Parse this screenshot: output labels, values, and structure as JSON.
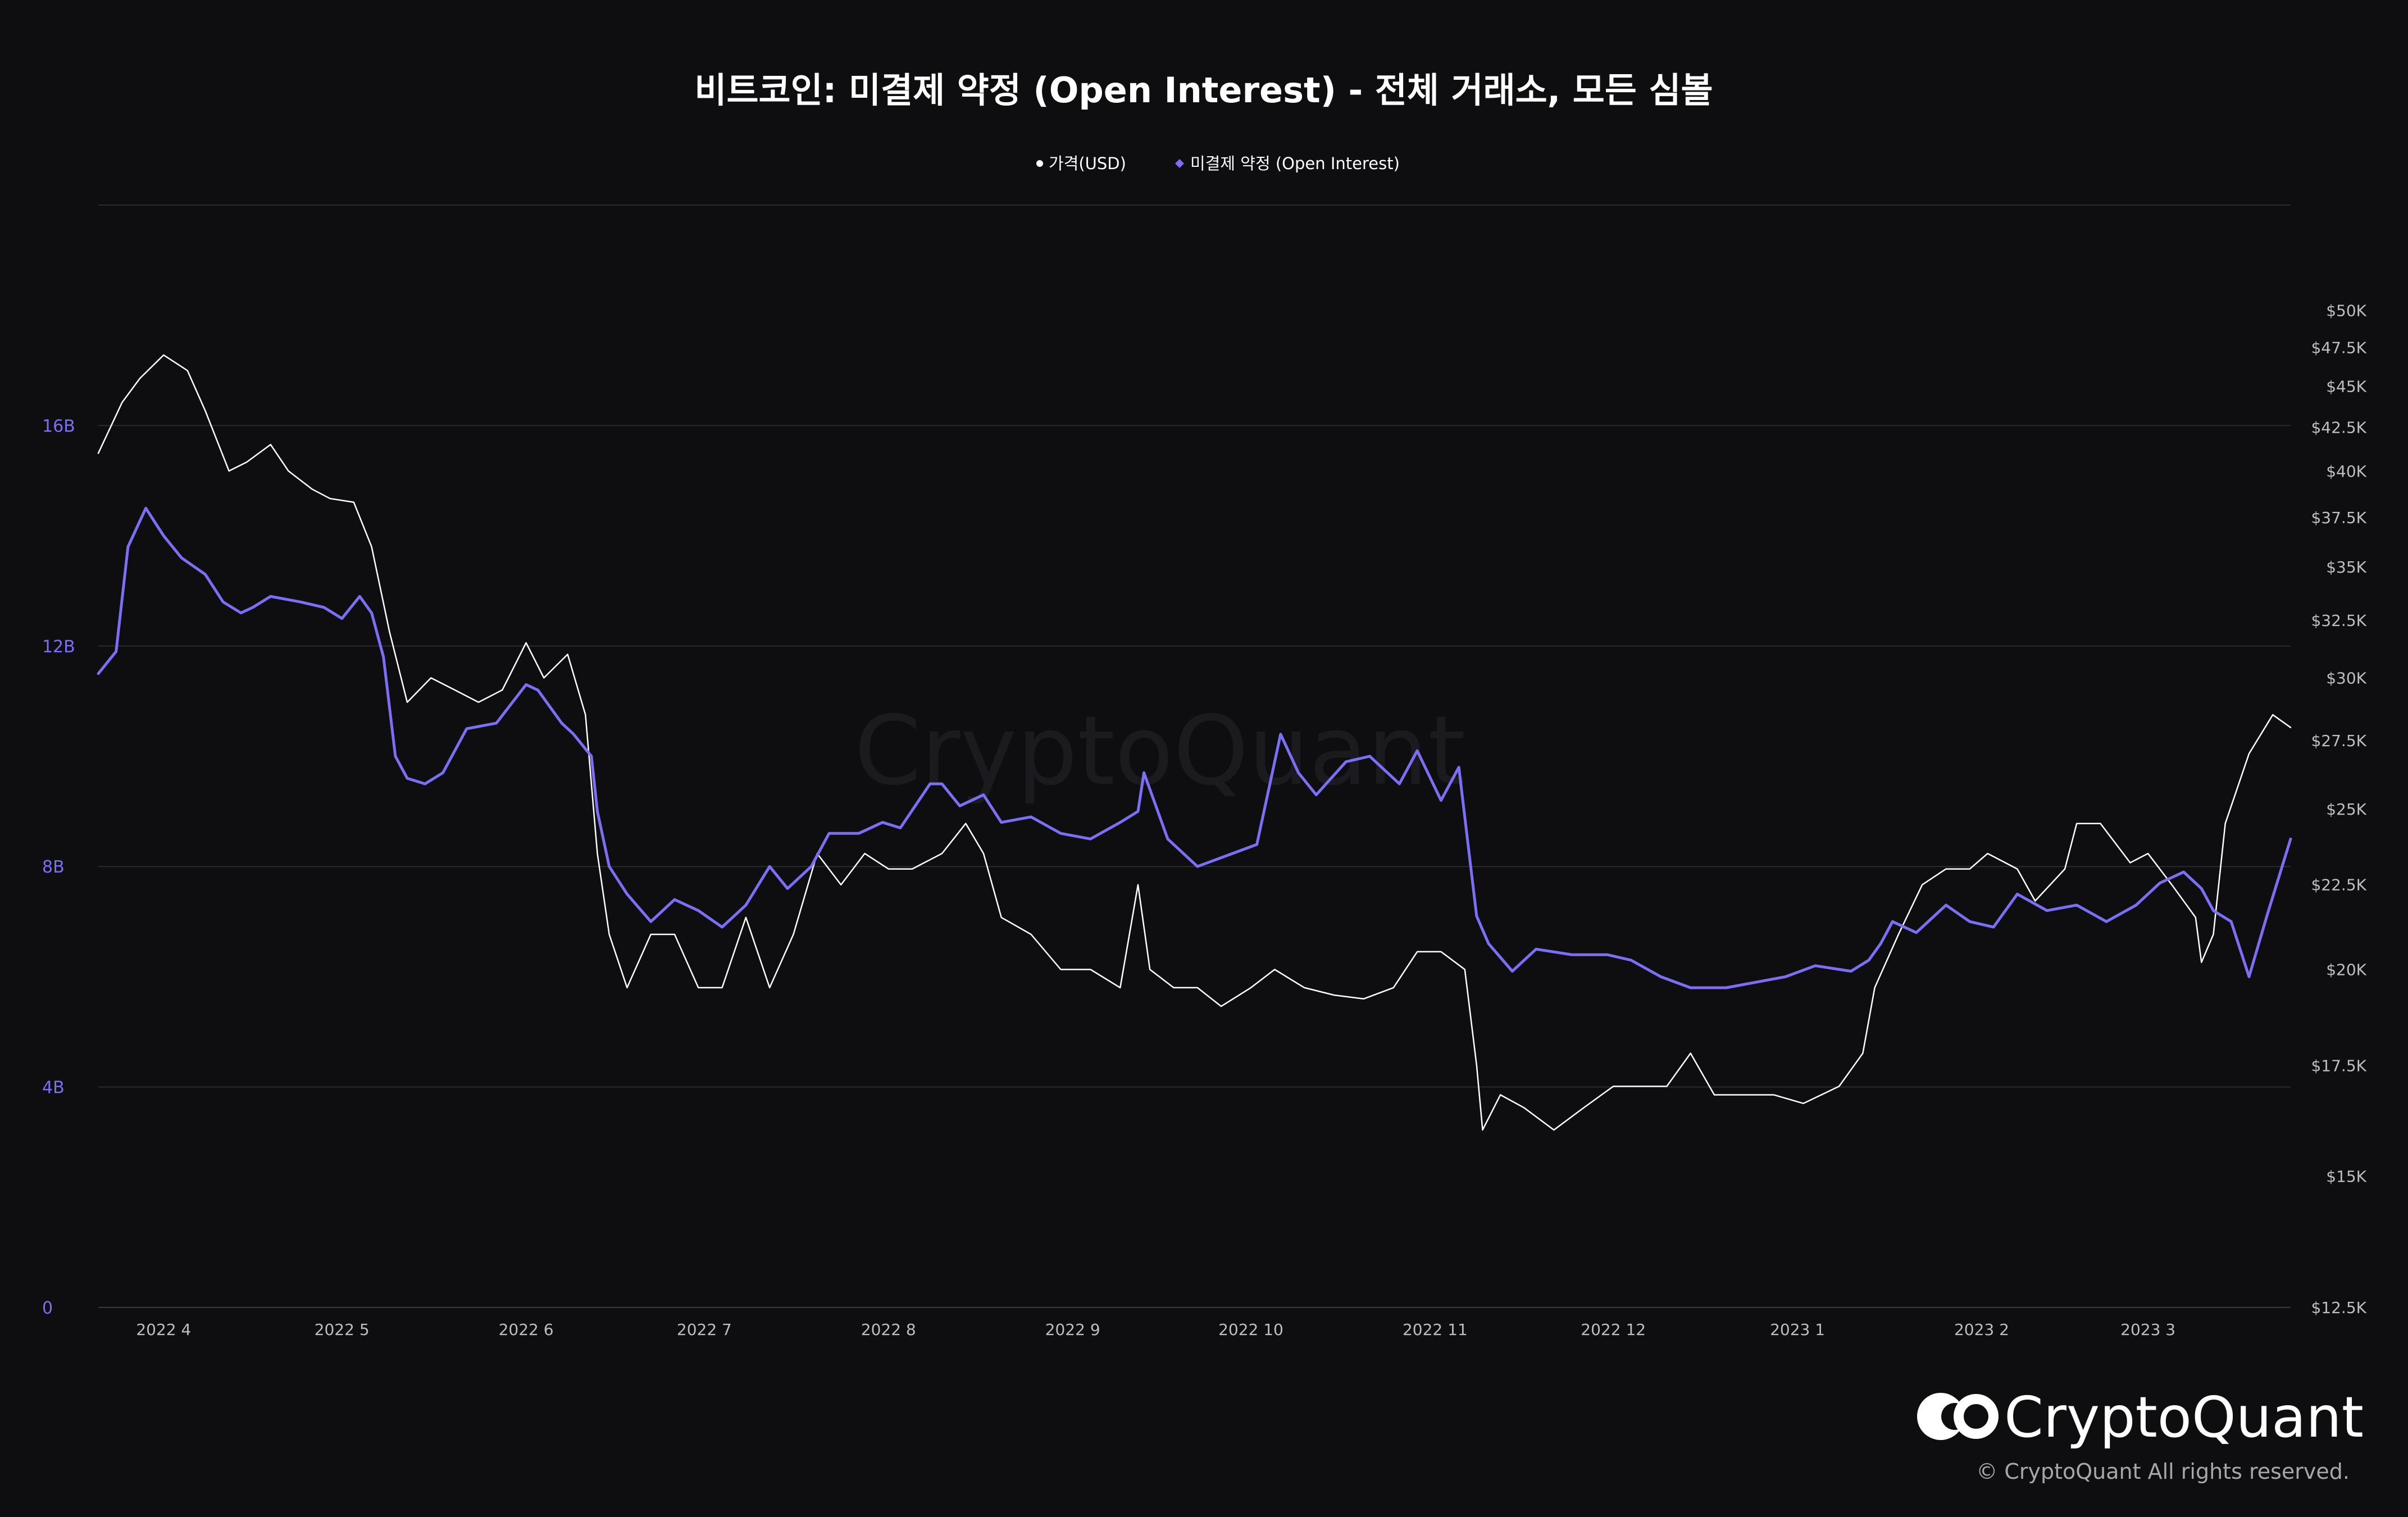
{
  "chart_data": {
    "type": "line",
    "title": "비트코인: 미결제 약정 (Open Interest) - 전체 거래소, 모든 심볼",
    "legend": {
      "placement": "top-center",
      "entries": [
        {
          "label": "가격(USD)",
          "marker": "circle",
          "color": "#ffffff"
        },
        {
          "label": "미결제 약정 (Open Interest)",
          "marker": "diamond",
          "color": "#7b6ff5"
        }
      ]
    },
    "x_ticks": [
      "2022 4",
      "2022 5",
      "2022 6",
      "2022 7",
      "2022 8",
      "2022 9",
      "2022 10",
      "2022 11",
      "2022 12",
      "2023 1",
      "2023 2",
      "2023 3"
    ],
    "x_range": [
      "2022-03-21",
      "2023-03-25"
    ],
    "left_axis": {
      "ticks": [
        "0",
        "4B",
        "8B",
        "12B",
        "16B"
      ],
      "ylim": [
        0,
        20
      ]
    },
    "right_axis": {
      "scale": "log",
      "ticks": [
        "$12.5K",
        "$15K",
        "$17.5K",
        "$20K",
        "$22.5K",
        "$25K",
        "$27.5K",
        "$30K",
        "$32.5K",
        "$35K",
        "$37.5K",
        "$40K",
        "$42.5K",
        "$45K",
        "$47.5K",
        "$50K"
      ],
      "ylim": [
        12.5,
        57.9
      ]
    },
    "grid": "horizontal",
    "series": [
      {
        "name": "가격(USD)",
        "axis": "right",
        "color": "#ffffff",
        "x": [
          "2022-03-21",
          "2022-03-25",
          "2022-03-28",
          "2022-04-01",
          "2022-04-05",
          "2022-04-08",
          "2022-04-12",
          "2022-04-15",
          "2022-04-19",
          "2022-04-22",
          "2022-04-26",
          "2022-04-29",
          "2022-05-03",
          "2022-05-06",
          "2022-05-09",
          "2022-05-12",
          "2022-05-16",
          "2022-05-20",
          "2022-05-24",
          "2022-05-28",
          "2022-06-01",
          "2022-06-04",
          "2022-06-08",
          "2022-06-11",
          "2022-06-13",
          "2022-06-15",
          "2022-06-18",
          "2022-06-22",
          "2022-06-26",
          "2022-06-30",
          "2022-07-04",
          "2022-07-08",
          "2022-07-12",
          "2022-07-16",
          "2022-07-20",
          "2022-07-24",
          "2022-07-28",
          "2022-08-01",
          "2022-08-05",
          "2022-08-10",
          "2022-08-14",
          "2022-08-17",
          "2022-08-20",
          "2022-08-25",
          "2022-08-30",
          "2022-09-04",
          "2022-09-09",
          "2022-09-12",
          "2022-09-14",
          "2022-09-18",
          "2022-09-22",
          "2022-09-26",
          "2022-10-01",
          "2022-10-05",
          "2022-10-10",
          "2022-10-15",
          "2022-10-20",
          "2022-10-25",
          "2022-10-29",
          "2022-11-02",
          "2022-11-06",
          "2022-11-08",
          "2022-11-09",
          "2022-11-12",
          "2022-11-16",
          "2022-11-21",
          "2022-11-26",
          "2022-12-01",
          "2022-12-05",
          "2022-12-10",
          "2022-12-14",
          "2022-12-18",
          "2022-12-23",
          "2022-12-28",
          "2023-01-02",
          "2023-01-08",
          "2023-01-12",
          "2023-01-14",
          "2023-01-18",
          "2023-01-22",
          "2023-01-26",
          "2023-01-30",
          "2023-02-02",
          "2023-02-07",
          "2023-02-10",
          "2023-02-15",
          "2023-02-17",
          "2023-02-21",
          "2023-02-26",
          "2023-03-01",
          "2023-03-05",
          "2023-03-09",
          "2023-03-10",
          "2023-03-12",
          "2023-03-14",
          "2023-03-18",
          "2023-03-22",
          "2023-03-25"
        ],
        "values": [
          41.0,
          44.0,
          45.5,
          47.0,
          46.0,
          43.5,
          40.0,
          40.5,
          41.5,
          40.0,
          39.0,
          38.5,
          38.3,
          36.0,
          32.0,
          29.0,
          30.0,
          29.5,
          29.0,
          29.5,
          31.5,
          30.0,
          31.0,
          28.5,
          23.5,
          21.0,
          19.5,
          21.0,
          21.0,
          19.5,
          19.5,
          21.5,
          19.5,
          21.0,
          23.5,
          22.5,
          23.5,
          23.0,
          23.0,
          23.5,
          24.5,
          23.5,
          21.5,
          21.0,
          20.0,
          20.0,
          19.5,
          22.5,
          20.0,
          19.5,
          19.5,
          19.0,
          19.5,
          20.0,
          19.5,
          19.3,
          19.2,
          19.5,
          20.5,
          20.5,
          20.0,
          17.5,
          16.0,
          16.8,
          16.5,
          16.0,
          16.5,
          17.0,
          17.0,
          17.0,
          17.8,
          16.8,
          16.8,
          16.8,
          16.6,
          17.0,
          17.8,
          19.5,
          21.0,
          22.5,
          23.0,
          23.0,
          23.5,
          23.0,
          22.0,
          23.0,
          24.5,
          24.5,
          23.2,
          23.5,
          22.5,
          21.5,
          20.2,
          21.0,
          24.5,
          27.0,
          28.5,
          28.0
        ]
      },
      {
        "name": "미결제 약정 (Open Interest)",
        "axis": "left",
        "color": "#7b6ff5",
        "x": [
          "2022-03-21",
          "2022-03-24",
          "2022-03-26",
          "2022-03-29",
          "2022-04-01",
          "2022-04-04",
          "2022-04-08",
          "2022-04-11",
          "2022-04-14",
          "2022-04-16",
          "2022-04-19",
          "2022-04-24",
          "2022-04-28",
          "2022-05-01",
          "2022-05-04",
          "2022-05-06",
          "2022-05-08",
          "2022-05-10",
          "2022-05-12",
          "2022-05-15",
          "2022-05-18",
          "2022-05-22",
          "2022-05-27",
          "2022-06-01",
          "2022-06-03",
          "2022-06-07",
          "2022-06-09",
          "2022-06-12",
          "2022-06-13",
          "2022-06-15",
          "2022-06-18",
          "2022-06-22",
          "2022-06-26",
          "2022-06-30",
          "2022-07-04",
          "2022-07-08",
          "2022-07-12",
          "2022-07-15",
          "2022-07-19",
          "2022-07-22",
          "2022-07-27",
          "2022-07-31",
          "2022-08-03",
          "2022-08-08",
          "2022-08-10",
          "2022-08-13",
          "2022-08-17",
          "2022-08-20",
          "2022-08-25",
          "2022-08-30",
          "2022-09-04",
          "2022-09-09",
          "2022-09-12",
          "2022-09-13",
          "2022-09-17",
          "2022-09-22",
          "2022-09-27",
          "2022-10-02",
          "2022-10-06",
          "2022-10-09",
          "2022-10-12",
          "2022-10-17",
          "2022-10-21",
          "2022-10-26",
          "2022-10-29",
          "2022-11-02",
          "2022-11-05",
          "2022-11-07",
          "2022-11-08",
          "2022-11-10",
          "2022-11-14",
          "2022-11-18",
          "2022-11-24",
          "2022-11-30",
          "2022-12-04",
          "2022-12-09",
          "2022-12-14",
          "2022-12-20",
          "2022-12-25",
          "2022-12-30",
          "2023-01-04",
          "2023-01-10",
          "2023-01-13",
          "2023-01-15",
          "2023-01-17",
          "2023-01-21",
          "2023-01-26",
          "2023-01-30",
          "2023-02-03",
          "2023-02-07",
          "2023-02-12",
          "2023-02-17",
          "2023-02-22",
          "2023-02-27",
          "2023-03-03",
          "2023-03-07",
          "2023-03-10",
          "2023-03-12",
          "2023-03-15",
          "2023-03-18",
          "2023-03-21",
          "2023-03-25"
        ],
        "values": [
          11.5,
          11.9,
          13.8,
          14.5,
          14.0,
          13.6,
          13.3,
          12.8,
          12.6,
          12.7,
          12.9,
          12.8,
          12.7,
          12.5,
          12.9,
          12.6,
          11.8,
          10.0,
          9.6,
          9.5,
          9.7,
          10.5,
          10.6,
          11.3,
          11.2,
          10.6,
          10.4,
          10.0,
          9.0,
          8.0,
          7.5,
          7.0,
          7.4,
          7.2,
          6.9,
          7.3,
          8.0,
          7.6,
          8.0,
          8.6,
          8.6,
          8.8,
          8.7,
          9.5,
          9.5,
          9.1,
          9.3,
          8.8,
          8.9,
          8.6,
          8.5,
          8.8,
          9.0,
          9.7,
          8.5,
          8.0,
          8.2,
          8.4,
          10.4,
          9.7,
          9.3,
          9.9,
          10.0,
          9.5,
          10.1,
          9.2,
          9.8,
          8.0,
          7.1,
          6.6,
          6.1,
          6.5,
          6.4,
          6.4,
          6.3,
          6.0,
          5.8,
          5.8,
          5.9,
          6.0,
          6.2,
          6.1,
          6.3,
          6.6,
          7.0,
          6.8,
          7.3,
          7.0,
          6.9,
          7.5,
          7.2,
          7.3,
          7.0,
          7.3,
          7.7,
          7.9,
          7.6,
          7.2,
          7.0,
          6.0,
          7.1,
          8.5
        ]
      }
    ]
  },
  "watermark": "CryptoQuant",
  "brand": {
    "name": "CryptoQuant",
    "copyright": "© CryptoQuant All rights reserved."
  }
}
